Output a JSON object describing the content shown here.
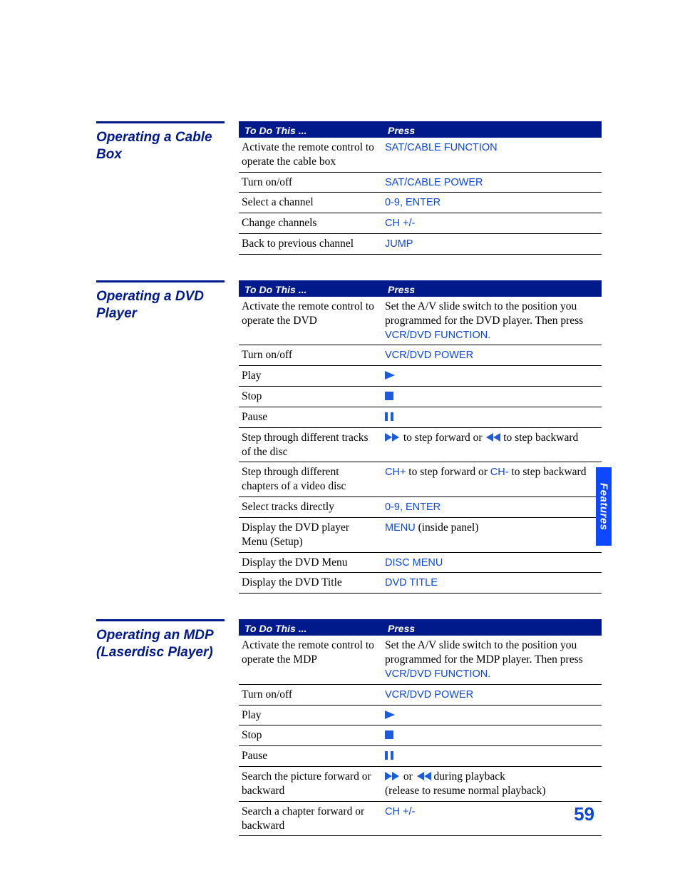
{
  "colors": {
    "heading_blue": "#001a8c",
    "link_blue": "#0d47d6",
    "tab_blue": "#0d47ff",
    "icon_blue": "#1e5bd8",
    "text_black": "#000000",
    "bg_white": "#ffffff"
  },
  "typography": {
    "body_font": "Palatino Linotype",
    "ui_font": "Segoe UI",
    "heading_fontsize_pt": 14,
    "body_fontsize_pt": 11.5,
    "table_header_fontsize_pt": 10.5,
    "pagenum_fontsize_pt": 20
  },
  "side_tab": "Features",
  "page_number": "59",
  "table_headers": {
    "col1": "To Do This ...",
    "col2": "Press"
  },
  "sections": [
    {
      "title": "Operating a Cable Box",
      "rows": [
        {
          "todo": "Activate the remote control to operate the cable box",
          "press": [
            {
              "t": "cmd",
              "v": "SAT/CABLE FUNCTION"
            }
          ]
        },
        {
          "todo": "Turn on/off",
          "press": [
            {
              "t": "cmd",
              "v": "SAT/CABLE POWER"
            }
          ]
        },
        {
          "todo": "Select a channel",
          "press": [
            {
              "t": "cmd",
              "v": "0-9, ENTER"
            }
          ]
        },
        {
          "todo": "Change channels",
          "press": [
            {
              "t": "cmd",
              "v": "CH +/-"
            }
          ]
        },
        {
          "todo": "Back to previous channel",
          "press": [
            {
              "t": "cmd",
              "v": "JUMP"
            }
          ]
        }
      ]
    },
    {
      "title": "Operating a DVD Player",
      "rows": [
        {
          "todo": "Activate the remote control to operate the DVD",
          "press": [
            {
              "t": "text",
              "v": "Set the A/V slide switch to the position you programmed for the DVD player. Then press "
            },
            {
              "t": "cmd",
              "v": "VCR/DVD FUNCTION"
            },
            {
              "t": "cmd",
              "v": "."
            }
          ]
        },
        {
          "todo": "Turn on/off",
          "press": [
            {
              "t": "cmd",
              "v": "VCR/DVD POWER"
            }
          ]
        },
        {
          "todo": "Play",
          "press": [
            {
              "t": "icon",
              "v": "play"
            }
          ]
        },
        {
          "todo": "Stop",
          "press": [
            {
              "t": "icon",
              "v": "stop"
            }
          ]
        },
        {
          "todo": "Pause",
          "press": [
            {
              "t": "icon",
              "v": "pause"
            }
          ]
        },
        {
          "todo": "Step through different tracks of the disc",
          "press": [
            {
              "t": "icon",
              "v": "ff"
            },
            {
              "t": "text",
              "v": " to step forward or "
            },
            {
              "t": "icon",
              "v": "rew"
            },
            {
              "t": "text",
              "v": " to step backward"
            }
          ]
        },
        {
          "todo": "Step through different chapters of a video disc",
          "press": [
            {
              "t": "cmd",
              "v": "CH+"
            },
            {
              "t": "text",
              "v": " to step forward or "
            },
            {
              "t": "cmd",
              "v": "CH-"
            },
            {
              "t": "text",
              "v": " to step backward"
            }
          ]
        },
        {
          "todo": "Select tracks directly",
          "press": [
            {
              "t": "cmd",
              "v": "0-9, ENTER"
            }
          ]
        },
        {
          "todo": "Display the DVD player Menu (Setup)",
          "press": [
            {
              "t": "cmd",
              "v": "MENU"
            },
            {
              "t": "text",
              "v": " (inside panel)"
            }
          ]
        },
        {
          "todo": "Display the DVD Menu",
          "press": [
            {
              "t": "cmd",
              "v": "DISC MENU"
            }
          ]
        },
        {
          "todo": "Display the DVD Title",
          "press": [
            {
              "t": "cmd",
              "v": "DVD TITLE"
            }
          ]
        }
      ]
    },
    {
      "title": "Operating an MDP (Laserdisc Player)",
      "rows": [
        {
          "todo": "Activate the remote control to operate the MDP",
          "press": [
            {
              "t": "text",
              "v": "Set the A/V slide switch to the position you programmed for the MDP player. Then press "
            },
            {
              "t": "cmd",
              "v": "VCR/DVD FUNCTION"
            },
            {
              "t": "cmd",
              "v": "."
            }
          ]
        },
        {
          "todo": "Turn on/off",
          "press": [
            {
              "t": "cmd",
              "v": "VCR/DVD POWER"
            }
          ]
        },
        {
          "todo": "Play",
          "press": [
            {
              "t": "icon",
              "v": "play"
            }
          ]
        },
        {
          "todo": "Stop",
          "press": [
            {
              "t": "icon",
              "v": "stop"
            }
          ]
        },
        {
          "todo": "Pause",
          "press": [
            {
              "t": "icon",
              "v": "pause"
            }
          ]
        },
        {
          "todo": "Search the picture forward or backward",
          "press": [
            {
              "t": "icon",
              "v": "ff"
            },
            {
              "t": "text",
              "v": " or "
            },
            {
              "t": "icon",
              "v": "rew"
            },
            {
              "t": "text",
              "v": " during playback"
            },
            {
              "t": "br"
            },
            {
              "t": "text",
              "v": "(release to resume normal playback)"
            }
          ]
        },
        {
          "todo": "Search a chapter forward or backward",
          "press": [
            {
              "t": "cmd",
              "v": "CH +/-"
            }
          ]
        }
      ]
    }
  ]
}
